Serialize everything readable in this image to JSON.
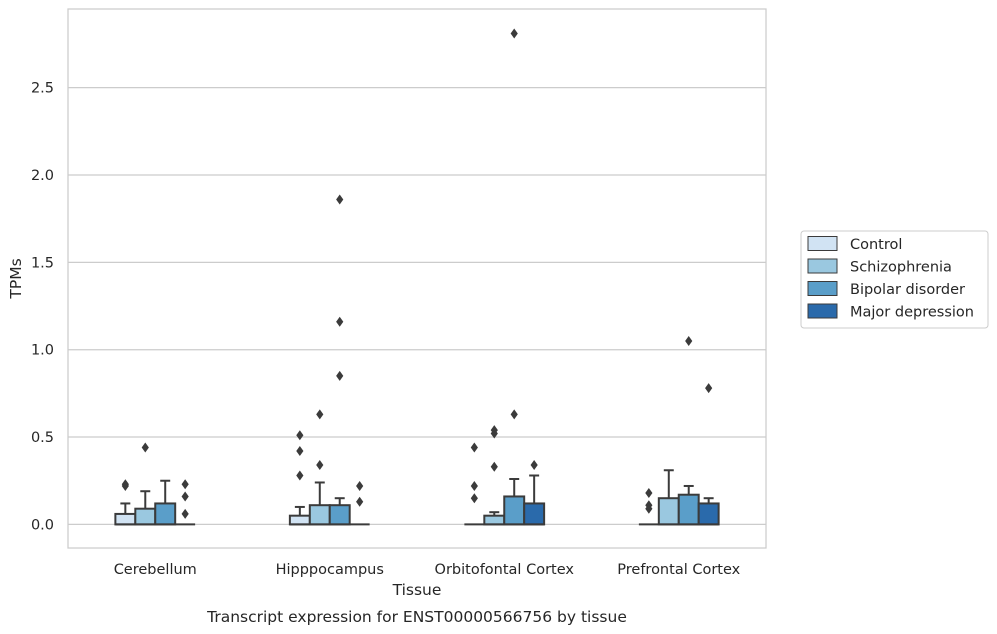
{
  "chart_data": {
    "type": "box",
    "title": "",
    "caption": "Transcript expression for ENST00000566756 by tissue",
    "xlabel": "Tissue",
    "ylabel": "TPMs",
    "ylim": [
      -0.135,
      2.95
    ],
    "yticks": [
      0.0,
      0.5,
      1.0,
      1.5,
      2.0,
      2.5
    ],
    "ytick_labels": [
      "0.0",
      "0.5",
      "1.0",
      "1.5",
      "2.0",
      "2.5"
    ],
    "grid": "horizontal",
    "legend_position": "right",
    "categories": [
      "Cerebellum",
      "Hipppocampus",
      "Orbitofontal Cortex",
      "Prefrontal Cortex"
    ],
    "series": [
      {
        "name": "Control",
        "color": "#d1e3f3",
        "boxes": [
          {
            "q1": 0.0,
            "median": 0.0,
            "q3": 0.06,
            "whisker_low": 0.0,
            "whisker_high": 0.12,
            "outliers": [
              0.22,
              0.23
            ]
          },
          {
            "q1": 0.0,
            "median": 0.0,
            "q3": 0.05,
            "whisker_low": 0.0,
            "whisker_high": 0.1,
            "outliers": [
              0.28,
              0.42,
              0.51
            ]
          },
          {
            "q1": 0.0,
            "median": 0.0,
            "q3": 0.0,
            "whisker_low": 0.0,
            "whisker_high": 0.0,
            "outliers": [
              0.15,
              0.22,
              0.44
            ]
          },
          {
            "q1": 0.0,
            "median": 0.0,
            "q3": 0.0,
            "whisker_low": 0.0,
            "whisker_high": 0.0,
            "outliers": [
              0.09,
              0.11,
              0.18
            ]
          }
        ]
      },
      {
        "name": "Schizophrenia",
        "color": "#9ac8e0",
        "boxes": [
          {
            "q1": 0.0,
            "median": 0.0,
            "q3": 0.09,
            "whisker_low": 0.0,
            "whisker_high": 0.19,
            "outliers": [
              0.44
            ]
          },
          {
            "q1": 0.0,
            "median": 0.0,
            "q3": 0.11,
            "whisker_low": 0.0,
            "whisker_high": 0.24,
            "outliers": [
              0.34,
              0.63
            ]
          },
          {
            "q1": 0.0,
            "median": 0.0,
            "q3": 0.05,
            "whisker_low": 0.0,
            "whisker_high": 0.07,
            "outliers": [
              0.33,
              0.52,
              0.54
            ]
          },
          {
            "q1": 0.0,
            "median": 0.0,
            "q3": 0.15,
            "whisker_low": 0.0,
            "whisker_high": 0.31,
            "outliers": []
          }
        ]
      },
      {
        "name": "Bipolar disorder",
        "color": "#5a9ec9",
        "boxes": [
          {
            "q1": 0.0,
            "median": 0.0,
            "q3": 0.12,
            "whisker_low": 0.0,
            "whisker_high": 0.25,
            "outliers": []
          },
          {
            "q1": 0.0,
            "median": 0.0,
            "q3": 0.11,
            "whisker_low": 0.0,
            "whisker_high": 0.15,
            "outliers": [
              0.85,
              1.16,
              1.86
            ]
          },
          {
            "q1": 0.0,
            "median": 0.0,
            "q3": 0.16,
            "whisker_low": 0.0,
            "whisker_high": 0.26,
            "outliers": [
              0.63,
              2.81
            ]
          },
          {
            "q1": 0.0,
            "median": 0.0,
            "q3": 0.17,
            "whisker_low": 0.0,
            "whisker_high": 0.22,
            "outliers": [
              1.05
            ]
          }
        ]
      },
      {
        "name": "Major depression",
        "color": "#2a6aab",
        "boxes": [
          {
            "q1": 0.0,
            "median": 0.0,
            "q3": 0.0,
            "whisker_low": 0.0,
            "whisker_high": 0.0,
            "outliers": [
              0.06,
              0.16,
              0.23
            ]
          },
          {
            "q1": 0.0,
            "median": 0.0,
            "q3": 0.0,
            "whisker_low": 0.0,
            "whisker_high": 0.0,
            "outliers": [
              0.13,
              0.22
            ]
          },
          {
            "q1": 0.0,
            "median": 0.0,
            "q3": 0.12,
            "whisker_low": 0.0,
            "whisker_high": 0.28,
            "outliers": [
              0.34
            ]
          },
          {
            "q1": 0.0,
            "median": 0.0,
            "q3": 0.12,
            "whisker_low": 0.0,
            "whisker_high": 0.15,
            "outliers": [
              0.78
            ]
          }
        ]
      }
    ]
  }
}
